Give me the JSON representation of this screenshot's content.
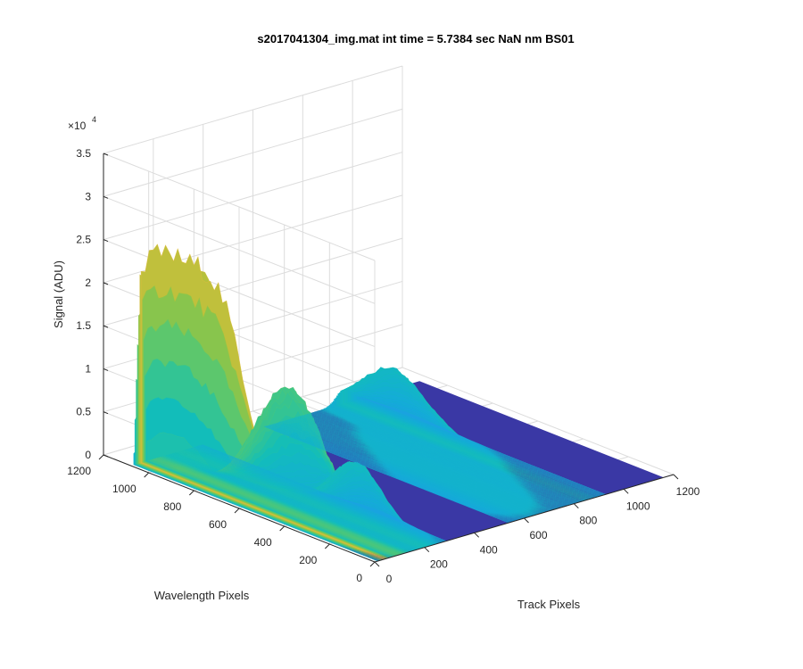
{
  "chart_data": {
    "type": "surface",
    "title": "s2017041304_img.mat int time = 5.7384 sec  NaN nm BS01",
    "xlabel": "Track Pixels",
    "ylabel": "Wavelength Pixels",
    "zlabel": "Signal (ADU)",
    "x_range": [
      0,
      1200
    ],
    "y_range": [
      0,
      1200
    ],
    "z_range": [
      0,
      35000
    ],
    "z_exponent_label": "×10",
    "z_exponent": "4",
    "x_ticks": [
      "0",
      "200",
      "400",
      "600",
      "800",
      "1000",
      "1200"
    ],
    "y_ticks": [
      "0",
      "200",
      "400",
      "600",
      "800",
      "1000",
      "1200"
    ],
    "z_ticks": [
      "0",
      "0.5",
      "1",
      "1.5",
      "2",
      "2.5",
      "3",
      "3.5"
    ],
    "grid": true,
    "colormap": "parula",
    "colors": {
      "low": "#3E26A8",
      "mid": "#12BEB9",
      "high": "#F9FB0E"
    },
    "peaks": [
      {
        "track": 0,
        "wavelength": 1000,
        "signal": 28500
      },
      {
        "track": 0,
        "wavelength": 550,
        "signal": 16000
      },
      {
        "track": 850,
        "wavelength": 900,
        "signal": 6500
      }
    ]
  }
}
